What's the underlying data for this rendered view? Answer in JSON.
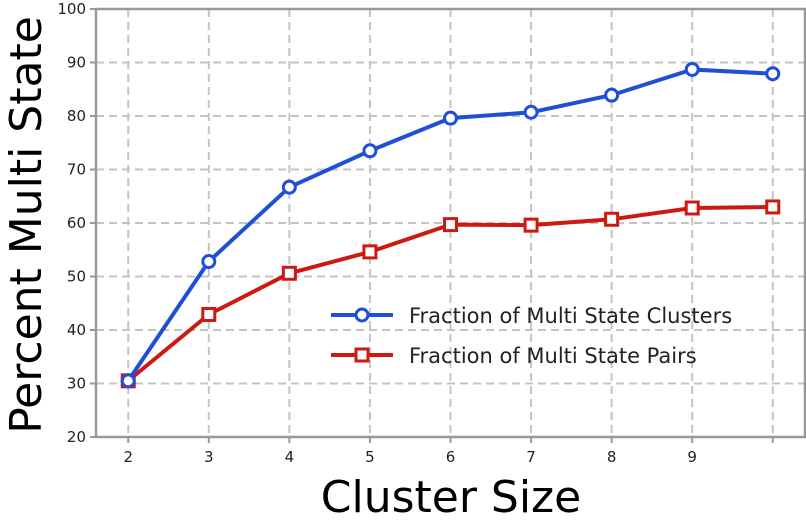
{
  "chart_data": {
    "type": "line",
    "xlabel": "Cluster Size",
    "ylabel": "Percent Multi State",
    "xlim": [
      1.6,
      10.4
    ],
    "ylim": [
      20,
      100
    ],
    "x_ticks": [
      2,
      3,
      4,
      5,
      6,
      7,
      8,
      9
    ],
    "x_tick_labels": [
      "2",
      "3",
      "4",
      "5",
      "6",
      "7",
      "8",
      "9"
    ],
    "y_ticks": [
      20,
      30,
      40,
      50,
      60,
      70,
      80,
      90,
      100
    ],
    "y_tick_labels": [
      "20",
      "30",
      "40",
      "50",
      "60",
      "70",
      "80",
      "90",
      "100"
    ],
    "grid": true,
    "legend_position": "center-right",
    "series": [
      {
        "name": "Fraction of Multi State Clusters",
        "color": "#1f4fd6",
        "marker": "circle",
        "x": [
          2,
          3,
          4,
          5,
          6,
          7,
          8,
          9,
          10
        ],
        "y": [
          30.5,
          52.8,
          66.7,
          73.5,
          79.6,
          80.7,
          83.9,
          88.7,
          87.9
        ]
      },
      {
        "name": "Fraction of Multi State Pairs",
        "color": "#cc1a10",
        "marker": "square",
        "x": [
          2,
          3,
          4,
          5,
          6,
          7,
          8,
          9,
          10
        ],
        "y": [
          30.5,
          42.9,
          50.6,
          54.6,
          59.7,
          59.6,
          60.7,
          62.8,
          63.0
        ]
      }
    ]
  }
}
